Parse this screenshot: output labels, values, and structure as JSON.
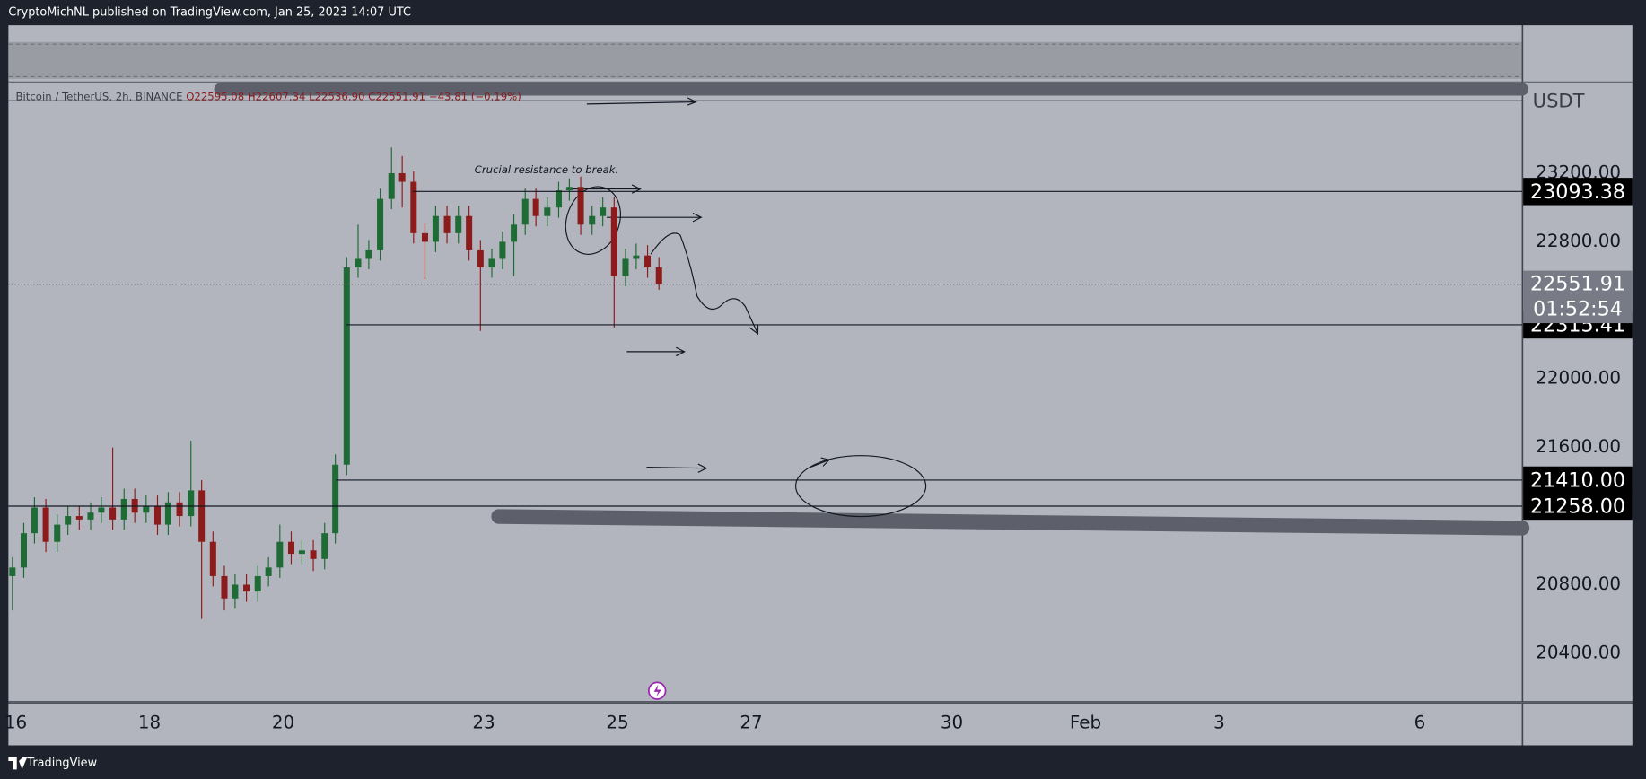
{
  "header": {
    "text": "CryptoMichNL published on TradingView.com, Jan 25, 2023 14:07 UTC"
  },
  "footer": {
    "brand": "TradingView"
  },
  "chart_data": {
    "type": "candlestick",
    "legend": {
      "symbol": "Bitcoin / TetherUS, 2h, BINANCE",
      "ohlc": [
        "O22595.08",
        "H22607.34",
        "L22536.90",
        "C22551.91"
      ],
      "change": "−43.81 (−0.19%)"
    },
    "currency": "USDT",
    "annotation": "Crucial resistance to break.",
    "up_color": "#1f6b35",
    "down_color": "#8c1b1b",
    "xlim": [
      15.89,
      38.53
    ],
    "xticks": [
      16,
      18,
      20,
      23,
      25,
      27,
      30,
      {
        "value": 32,
        "label": "Feb"
      },
      {
        "value": 34,
        "label": "3"
      },
      {
        "value": 37,
        "label": "6"
      }
    ],
    "ylim": [
      20120,
      23720
    ],
    "yticks": [
      {
        "value": 23200,
        "label": "23200.00"
      },
      {
        "value": 22800,
        "label": "22800.00"
      },
      {
        "value": 22000,
        "label": "22000.00"
      },
      {
        "value": 21600,
        "label": "21600.00"
      },
      {
        "value": 20800,
        "label": "20800.00"
      },
      {
        "value": 20400,
        "label": "20400.00"
      }
    ],
    "grid": false,
    "levels": [
      {
        "value": 23093.38,
        "label": "23093.38"
      },
      {
        "value": 22315.41,
        "label": "22315.41"
      },
      {
        "value": 21410,
        "label": "21410.00"
      },
      {
        "value": 21258,
        "label": "21258.00"
      }
    ],
    "current_price": {
      "value": 22551.91,
      "label": "22551.91"
    },
    "countdown": "01:52:54",
    "x": [
      15.95,
      16.12,
      16.28,
      16.45,
      16.62,
      16.78,
      16.95,
      17.12,
      17.28,
      17.45,
      17.62,
      17.78,
      17.95,
      18.12,
      18.28,
      18.45,
      18.62,
      18.78,
      18.95,
      19.12,
      19.28,
      19.45,
      19.62,
      19.78,
      19.95,
      20.12,
      20.28,
      20.45,
      20.62,
      20.78,
      20.95,
      21.12,
      21.28,
      21.45,
      21.62,
      21.78,
      21.95,
      22.12,
      22.28,
      22.45,
      22.62,
      22.78,
      22.95,
      23.12,
      23.28,
      23.45,
      23.62,
      23.78,
      23.95,
      24.12,
      24.28,
      24.45,
      24.62,
      24.78,
      24.95,
      25.12,
      25.28,
      25.45,
      25.62
    ],
    "open": [
      20850,
      20900,
      21100,
      21250,
      21050,
      21150,
      21200,
      21180,
      21220,
      21250,
      21180,
      21300,
      21220,
      21260,
      21150,
      21280,
      21200,
      21350,
      21050,
      20850,
      20720,
      20800,
      20760,
      20850,
      20900,
      21050,
      20980,
      21000,
      20950,
      21100,
      21500,
      22650,
      22700,
      22750,
      23050,
      23200,
      23150,
      22850,
      22800,
      22950,
      22850,
      22950,
      22750,
      22650,
      22700,
      22800,
      22900,
      23050,
      22950,
      23000,
      23100,
      23120,
      22900,
      22950,
      23000,
      22600,
      22700,
      22720,
      22650
    ],
    "high": [
      20960,
      21160,
      21310,
      21300,
      21210,
      21260,
      21260,
      21280,
      21310,
      21600,
      21360,
      21360,
      21320,
      21320,
      21340,
      21340,
      21640,
      21410,
      21110,
      20910,
      20860,
      20860,
      20910,
      20960,
      21150,
      21110,
      21060,
      21060,
      21160,
      21560,
      22710,
      22900,
      22810,
      23110,
      23350,
      23300,
      23210,
      22910,
      23010,
      23010,
      23010,
      23010,
      22810,
      22760,
      22860,
      22960,
      23110,
      23110,
      23060,
      23150,
      23170,
      23180,
      23010,
      23060,
      23060,
      22760,
      22790,
      22780,
      22710
    ],
    "low": [
      20650,
      20840,
      21040,
      20990,
      20990,
      21090,
      21120,
      21120,
      21160,
      21120,
      21120,
      21160,
      21160,
      21090,
      21090,
      21140,
      21140,
      20600,
      20790,
      20650,
      20660,
      20700,
      20700,
      20790,
      20840,
      20920,
      20920,
      20880,
      20890,
      21040,
      21440,
      22590,
      22640,
      22690,
      22990,
      23000,
      22790,
      22580,
      22740,
      22790,
      22790,
      22690,
      22280,
      22590,
      22640,
      22600,
      22840,
      22890,
      22890,
      22940,
      23040,
      22840,
      22840,
      22890,
      22300,
      22540,
      22640,
      22590,
      22520
    ],
    "close": [
      20900,
      21100,
      21250,
      21050,
      21150,
      21200,
      21180,
      21220,
      21250,
      21180,
      21300,
      21220,
      21260,
      21150,
      21280,
      21200,
      21350,
      21050,
      20850,
      20720,
      20800,
      20760,
      20850,
      20900,
      21050,
      20980,
      21000,
      20950,
      21100,
      21500,
      22650,
      22700,
      22750,
      23050,
      23200,
      23150,
      22850,
      22800,
      22950,
      22850,
      22950,
      22750,
      22650,
      22700,
      22800,
      22900,
      23050,
      22950,
      23000,
      23100,
      23120,
      22900,
      22950,
      23000,
      22600,
      22700,
      22720,
      22650,
      22552
    ]
  }
}
